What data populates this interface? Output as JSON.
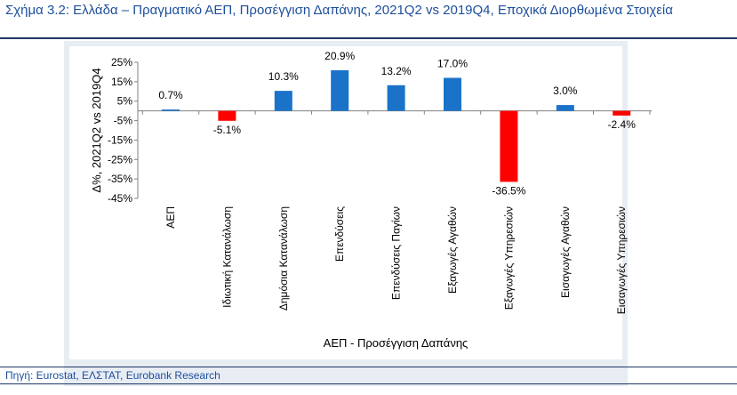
{
  "title": "Σχήμα 3.2: Ελλάδα – Πραγματικό ΑΕΠ, Προσέγγιση Δαπάνης, 2021Q2 vs 2019Q4, Εποχικά Διορθωμένα Στοιχεία",
  "source": "Πηγή: Eurostat, ΕΛΣΤΑΤ, Eurobank Research",
  "colors": {
    "positive": "#1a73c9",
    "negative": "#ff0000",
    "title": "#1d4f9c",
    "rule": "#1f3864",
    "axis": "#808080",
    "text": "#000000"
  },
  "chart_data": {
    "type": "bar",
    "xlabel": "ΑΕΠ - Προσέγγιση Δαπάνης",
    "ylabel": "Δ%, 2021Q2 vs 2019Q4",
    "ylim": [
      -45,
      25
    ],
    "yticks": [
      25,
      15,
      5,
      -5,
      -15,
      -25,
      -35,
      -45
    ],
    "ytick_labels": [
      "25%",
      "15%",
      "5%",
      "-5%",
      "-15%",
      "-25%",
      "-35%",
      "-45%"
    ],
    "grid": false,
    "legend": "none",
    "categories": [
      "ΑΕΠ",
      "Ιδιωτική Κατανάλωση",
      "Δημόσια Κατανάλωση",
      "Επενδύσεις",
      "Επενδύσεις Παγίων",
      "Εξαγωγές Αγαθών",
      "Εξαγωγές Υπηρεσιών",
      "Εισαγωγές Αγαθών",
      "Εισαγωγές Υπηρεσιών"
    ],
    "values": [
      0.7,
      -5.1,
      10.3,
      20.9,
      13.2,
      17.0,
      -36.5,
      3.0,
      -2.4
    ],
    "data_labels": [
      "0.7%",
      "-5.1%",
      "10.3%",
      "20.9%",
      "13.2%",
      "17.0%",
      "-36.5%",
      "3.0%",
      "-2.4%"
    ]
  }
}
